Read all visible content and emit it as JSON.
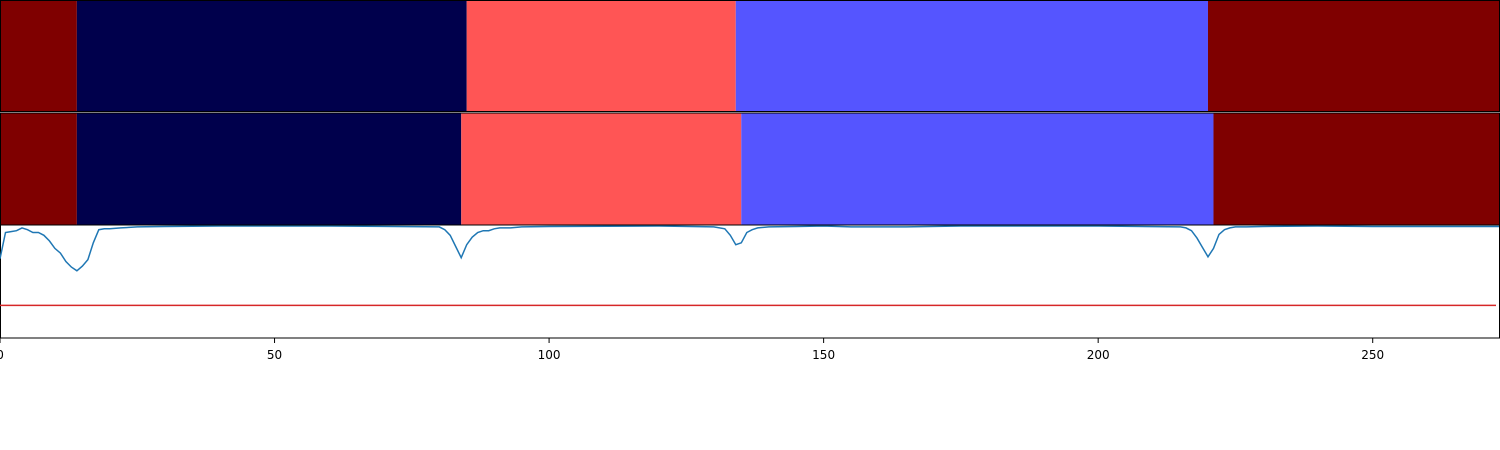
{
  "chart_data": [
    {
      "type": "segments",
      "panel": "top-band",
      "xlim": [
        0,
        273
      ],
      "segments": [
        {
          "start": 0,
          "end": 14,
          "color": "#7f0000"
        },
        {
          "start": 14,
          "end": 85,
          "color": "#00004c"
        },
        {
          "start": 85,
          "end": 134,
          "color": "#ff5555"
        },
        {
          "start": 134,
          "end": 220,
          "color": "#5555ff"
        },
        {
          "start": 220,
          "end": 273,
          "color": "#7f0000"
        }
      ]
    },
    {
      "type": "segments",
      "panel": "middle-band",
      "xlim": [
        0,
        273
      ],
      "segments": [
        {
          "start": 0,
          "end": 14,
          "color": "#7f0000"
        },
        {
          "start": 14,
          "end": 84,
          "color": "#00004c"
        },
        {
          "start": 84,
          "end": 135,
          "color": "#ff5555"
        },
        {
          "start": 135,
          "end": 221,
          "color": "#5555ff"
        },
        {
          "start": 221,
          "end": 273,
          "color": "#7f0000"
        }
      ]
    },
    {
      "type": "line",
      "panel": "bottom-line",
      "xlim": [
        0,
        273
      ],
      "ylim": [
        -0.2,
        1.0
      ],
      "xticks": [
        0,
        50,
        100,
        150,
        200,
        250
      ],
      "threshold": {
        "value": 0.15,
        "color": "#d62728"
      },
      "line_color": "#1f77b4",
      "x": [
        0,
        1,
        2,
        3,
        4,
        5,
        6,
        7,
        8,
        9,
        10,
        11,
        12,
        13,
        14,
        15,
        16,
        17,
        18,
        19,
        20,
        22,
        25,
        30,
        40,
        60,
        80,
        81,
        82,
        83,
        84,
        85,
        86,
        87,
        88,
        89,
        90,
        91,
        92,
        93,
        95,
        100,
        120,
        130,
        132,
        133,
        134,
        135,
        136,
        137,
        138,
        140,
        145,
        150,
        155,
        165,
        175,
        200,
        215,
        216,
        217,
        218,
        219,
        220,
        221,
        222,
        223,
        224,
        225,
        227,
        230,
        240,
        250,
        260,
        273
      ],
      "y": [
        0.65,
        0.93,
        0.94,
        0.95,
        0.98,
        0.96,
        0.93,
        0.93,
        0.9,
        0.84,
        0.76,
        0.71,
        0.62,
        0.56,
        0.52,
        0.57,
        0.64,
        0.82,
        0.96,
        0.97,
        0.97,
        0.98,
        0.99,
        0.995,
        1.0,
        1.0,
        0.99,
        0.96,
        0.9,
        0.78,
        0.66,
        0.8,
        0.88,
        0.93,
        0.95,
        0.95,
        0.97,
        0.98,
        0.98,
        0.98,
        0.99,
        0.995,
        1.0,
        0.99,
        0.97,
        0.9,
        0.8,
        0.82,
        0.93,
        0.96,
        0.98,
        0.99,
        0.995,
        1.0,
        0.99,
        0.99,
        1.0,
        1.0,
        0.99,
        0.98,
        0.95,
        0.87,
        0.77,
        0.67,
        0.76,
        0.91,
        0.96,
        0.98,
        0.99,
        0.99,
        0.995,
        1.0,
        0.995,
        0.995,
        0.995
      ]
    }
  ]
}
